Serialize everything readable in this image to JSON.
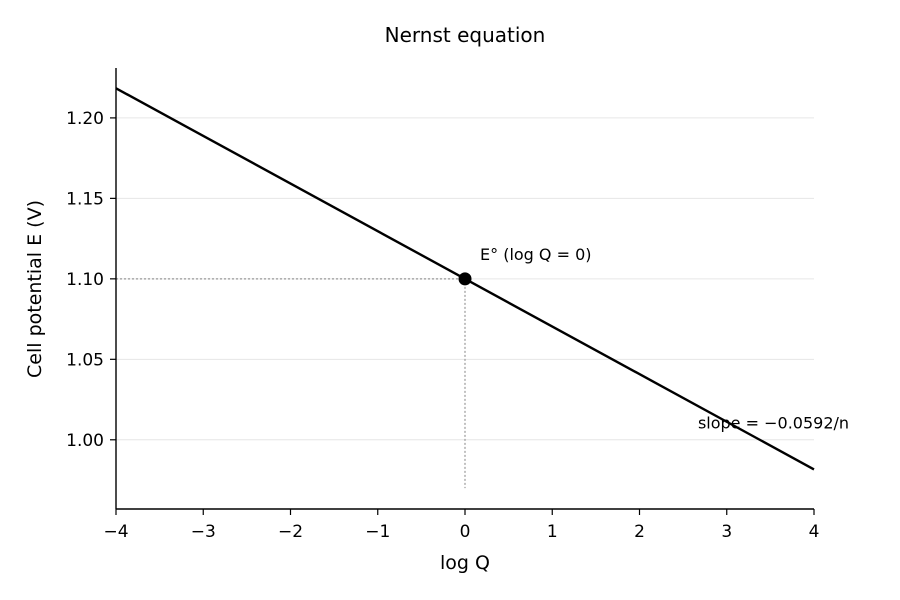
{
  "chart_data": {
    "type": "line",
    "title": "Nernst equation",
    "xlabel": "log Q",
    "ylabel": "Cell potential E (V)",
    "xlim": [
      -4,
      4
    ],
    "ylim": [
      0.957,
      1.231
    ],
    "x_ticks": [
      -4,
      -3,
      -2,
      -1,
      0,
      1,
      2,
      3,
      4
    ],
    "x_tick_labels": [
      "−4",
      "−3",
      "−2",
      "−1",
      "0",
      "1",
      "2",
      "3",
      "4"
    ],
    "y_ticks": [
      1.0,
      1.05,
      1.1,
      1.15,
      1.2
    ],
    "y_tick_labels": [
      "1.00",
      "1.05",
      "1.10",
      "1.15",
      "1.20"
    ],
    "grid": "horizontal",
    "series": [
      {
        "x": [
          -4,
          4
        ],
        "y": [
          1.2184,
          0.9816
        ],
        "color": "#000000"
      }
    ],
    "highlight_point": {
      "x": 0,
      "y": 1.1,
      "label": "E° (log Q = 0)"
    },
    "guide_line_bottom": 0.97,
    "annotations": [
      {
        "text": "slope = −0.0592/n",
        "x": 2.67,
        "y": 1.007
      }
    ]
  }
}
